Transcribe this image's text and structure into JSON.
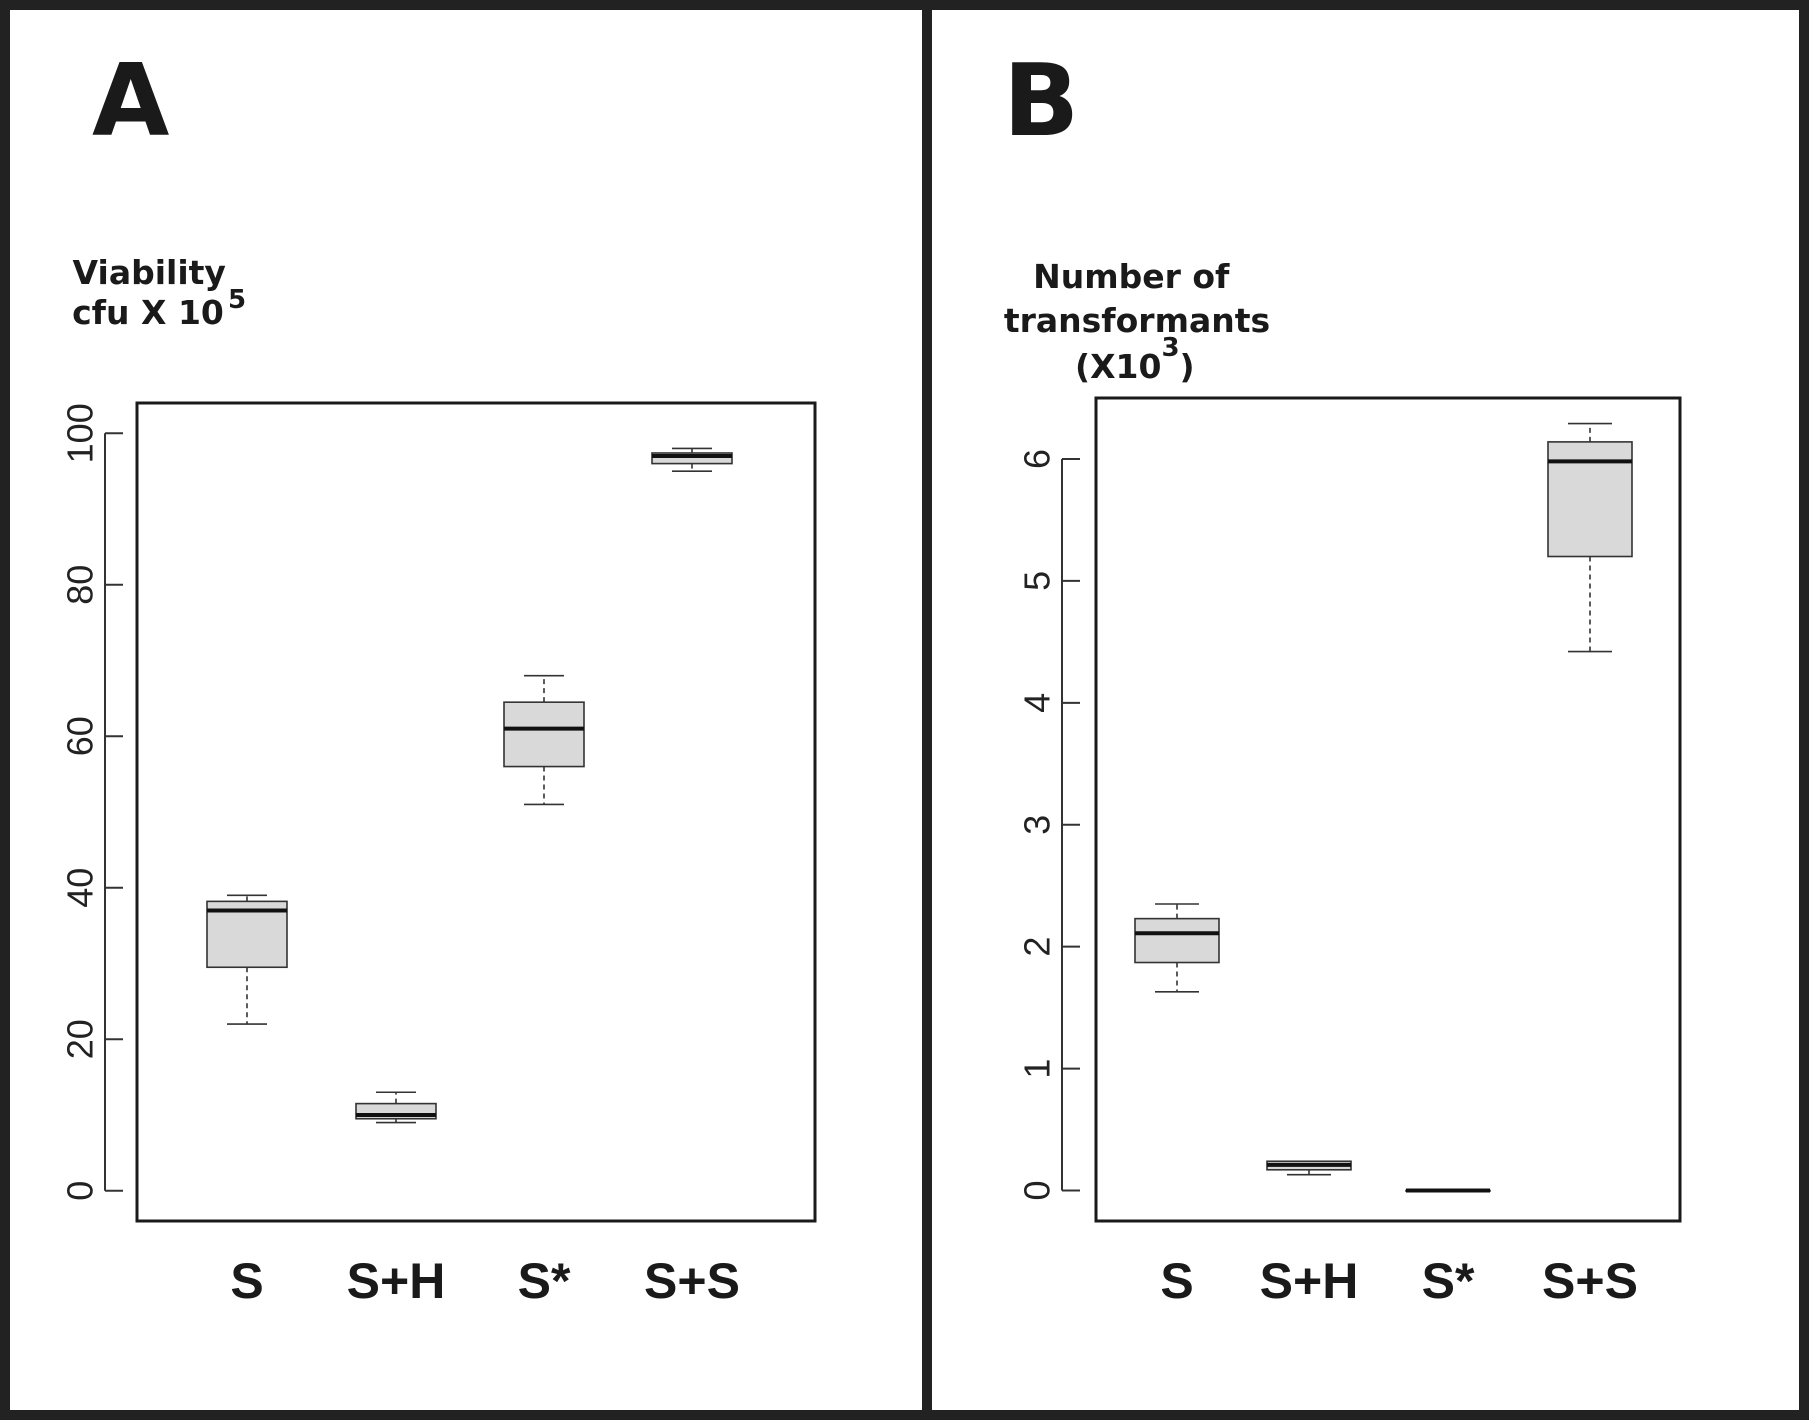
{
  "chart_data": [
    {
      "type": "boxplot",
      "panel_label": "A",
      "ylabel": "Viability",
      "ylabel_line2": "cfu X 10",
      "ylabel_superscript": "5",
      "categories": [
        "S",
        "S+H",
        "S*",
        "S+S"
      ],
      "ylim": [
        -4,
        104
      ],
      "yticks": [
        0,
        20,
        40,
        60,
        80,
        100
      ],
      "boxes": [
        {
          "category": "S",
          "whisker_low": 22,
          "q1": 29.5,
          "median": 37,
          "q3": 38.2,
          "whisker_high": 39
        },
        {
          "category": "S+H",
          "whisker_low": 9,
          "q1": 9.5,
          "median": 10,
          "q3": 11.5,
          "whisker_high": 13
        },
        {
          "category": "S*",
          "whisker_low": 51,
          "q1": 56,
          "median": 61,
          "q3": 64.5,
          "whisker_high": 68
        },
        {
          "category": "S+S",
          "whisker_low": 95,
          "q1": 96,
          "median": 97,
          "q3": 97.4,
          "whisker_high": 98
        }
      ],
      "box_color": "#d9d9d9",
      "grid": false
    },
    {
      "type": "boxplot",
      "panel_label": "B",
      "ylabel": "Number of",
      "ylabel_line2": "transformants",
      "ylabel_line3": "(X10",
      "ylabel_superscript": "3",
      "ylabel_close": ")",
      "categories": [
        "S",
        "S+H",
        "S*",
        "S+S"
      ],
      "ylim": [
        -0.25,
        6.5
      ],
      "yticks": [
        0,
        1,
        2,
        3,
        4,
        5,
        6
      ],
      "boxes": [
        {
          "category": "S",
          "whisker_low": 1.63,
          "q1": 1.87,
          "median": 2.11,
          "q3": 2.23,
          "whisker_high": 2.35
        },
        {
          "category": "S+H",
          "whisker_low": 0.13,
          "q1": 0.17,
          "median": 0.21,
          "q3": 0.24,
          "whisker_high": 0.24
        },
        {
          "category": "S*",
          "whisker_low": 0,
          "q1": 0,
          "median": 0,
          "q3": 0,
          "whisker_high": 0
        },
        {
          "category": "S+S",
          "whisker_low": 4.42,
          "q1": 5.2,
          "median": 5.98,
          "q3": 6.14,
          "whisker_high": 6.29
        }
      ],
      "box_color": "#d9d9d9",
      "grid": false
    }
  ]
}
